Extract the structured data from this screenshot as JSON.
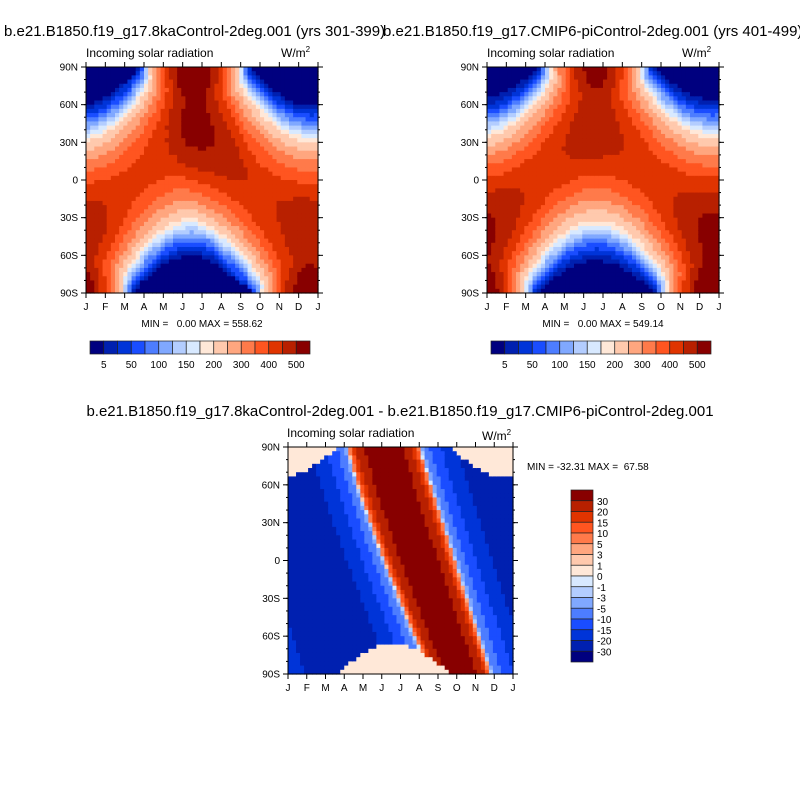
{
  "chart_data": [
    {
      "type": "heatmap",
      "subtype": "filled-contour",
      "title": "b.e21.B1850.f19_g17.8kaControl-2deg.001 (yrs 301-399)",
      "subtitle_left": "Incoming solar radiation",
      "units": "W/m",
      "units_sup": "2",
      "x_ticks": [
        "J",
        "F",
        "M",
        "A",
        "M",
        "J",
        "J",
        "A",
        "S",
        "O",
        "N",
        "D",
        "J"
      ],
      "y_ticks": [
        "90N",
        "60N",
        "30N",
        "0",
        "30S",
        "60S",
        "90S"
      ],
      "stats": "MIN =   0.00 MAX = 558.62",
      "min": 0.0,
      "max": 558.62,
      "colorbar": {
        "orientation": "horizontal",
        "levels": [
          5,
          25,
          50,
          75,
          100,
          125,
          150,
          175,
          200,
          250,
          300,
          350,
          400,
          450,
          500
        ],
        "labels": [
          "5",
          "50",
          "100",
          "150",
          "200",
          "300",
          "400",
          "500"
        ]
      }
    },
    {
      "type": "heatmap",
      "subtype": "filled-contour",
      "title": "b.e21.B1850.f19_g17.CMIP6-piControl-2deg.001 (yrs 401-499)",
      "subtitle_left": "Incoming solar radiation",
      "units": "W/m",
      "units_sup": "2",
      "x_ticks": [
        "J",
        "F",
        "M",
        "A",
        "M",
        "J",
        "J",
        "A",
        "S",
        "O",
        "N",
        "D",
        "J"
      ],
      "y_ticks": [
        "90N",
        "60N",
        "30N",
        "0",
        "30S",
        "60S",
        "90S"
      ],
      "stats": "MIN =   0.00 MAX = 549.14",
      "min": 0.0,
      "max": 549.14,
      "colorbar": {
        "orientation": "horizontal",
        "levels": [
          5,
          25,
          50,
          75,
          100,
          125,
          150,
          175,
          200,
          250,
          300,
          350,
          400,
          450,
          500
        ],
        "labels": [
          "5",
          "50",
          "100",
          "150",
          "200",
          "300",
          "400",
          "500"
        ]
      }
    },
    {
      "type": "heatmap",
      "subtype": "filled-contour",
      "title": "b.e21.B1850.f19_g17.8kaControl-2deg.001 - b.e21.B1850.f19_g17.CMIP6-piControl-2deg.001",
      "subtitle_left": "Incoming solar radiation",
      "units": "W/m",
      "units_sup": "2",
      "x_ticks": [
        "J",
        "F",
        "M",
        "A",
        "M",
        "J",
        "J",
        "A",
        "S",
        "O",
        "N",
        "D",
        "J"
      ],
      "y_ticks": [
        "90N",
        "60N",
        "30N",
        "0",
        "30S",
        "60S",
        "90S"
      ],
      "stats": "MIN = -32.31 MAX =  67.58",
      "min": -32.31,
      "max": 67.58,
      "colorbar": {
        "orientation": "vertical",
        "levels": [
          -30,
          -20,
          -15,
          -10,
          -5,
          -3,
          -1,
          0,
          1,
          3,
          5,
          10,
          15,
          20,
          30
        ],
        "labels": [
          "-30",
          "-20",
          "-15",
          "-10",
          "-5",
          "-3",
          "-1",
          "0",
          "1",
          "3",
          "5",
          "10",
          "15",
          "20",
          "30"
        ]
      }
    }
  ],
  "colors": [
    "#00007f",
    "#0020b0",
    "#0034d8",
    "#1a4dff",
    "#4d7dff",
    "#80a8ff",
    "#b3cdff",
    "#d8e9ff",
    "#ffe8d8",
    "#ffc9ad",
    "#ffa67f",
    "#ff7a4a",
    "#ff5520",
    "#e03400",
    "#b82000",
    "#880000"
  ]
}
